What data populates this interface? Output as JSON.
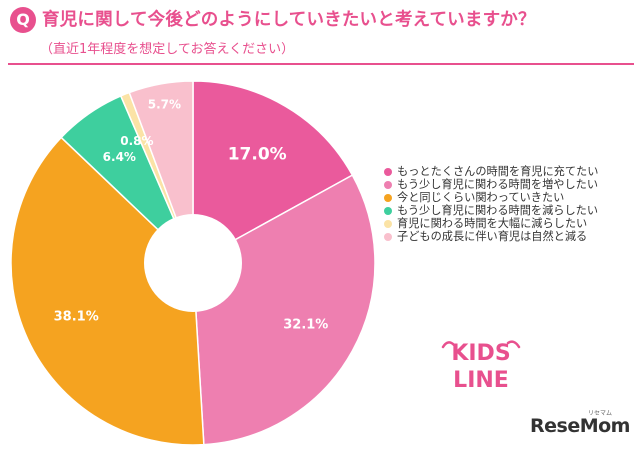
{
  "header": {
    "badge": "Q",
    "question": "育児に関して今後どのようにしていきたいと考えていますか？",
    "subtitle": "（直近1年程度を想定してお答えください）"
  },
  "chart_data": {
    "type": "pie",
    "donut": true,
    "start_angle_deg": 0,
    "categories": [
      "もっとたくさんの時間を育児に充てたい",
      "もう少し育児に関わる時間を増やしたい",
      "今と同じくらい関わっていきたい",
      "もう少し育児に関わる時間を減らしたい",
      "育児に関わる時間を大幅に減らしたい",
      "子どもの成長に伴い育児は自然と減る"
    ],
    "values": [
      17.0,
      32.1,
      38.1,
      6.4,
      0.8,
      5.7
    ],
    "labels": [
      "17.0%",
      "32.1%",
      "38.1%",
      "6.4%",
      "0.8%",
      "5.7%"
    ],
    "colors": [
      "#ea5a9c",
      "#ee7fb0",
      "#f5a320",
      "#3ecf9e",
      "#fbe3a6",
      "#f9c0cd"
    ],
    "legend_position": "right"
  },
  "logos": {
    "kids_line": [
      "KIDS",
      "LINE"
    ],
    "resemom": "ReseMom",
    "resemom_ruby": "リセマム"
  }
}
